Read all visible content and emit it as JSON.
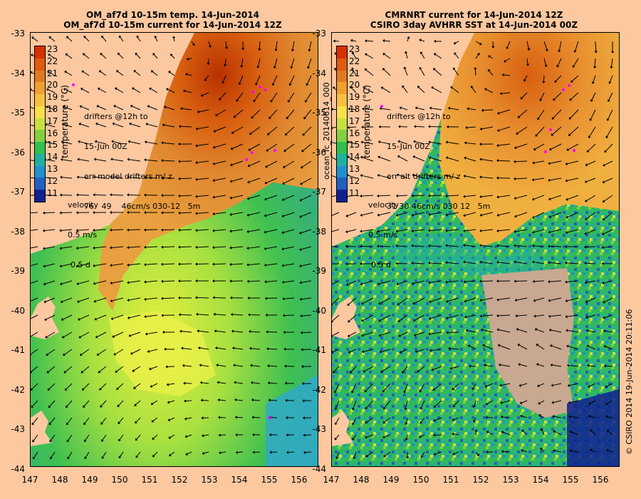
{
  "left_panel": {
    "title_line1": "OM_af7d 10-15m temp. 14-Jun-2014",
    "title_line2": "OM_af7d 10-15m current for 14-Jun-2014 12Z",
    "colorbar_label": "temperature (°C)",
    "drifters_line1": "drifters @12h to",
    "drifters_line2": "15-Jun 00Z",
    "err_line": "err model drifters m/ z",
    "stats_line": "76   49    46cm/s 030-12   5m",
    "velocity_label": "velocity",
    "scale_speed": "0.5 m/s",
    "scale_days": "0.5 d"
  },
  "right_panel": {
    "title_line1": "CMRNRT current for 14-Jun-2014 12Z",
    "title_line2": "CSIRO 3day AVHRR SST at 14-Jun-2014 00Z",
    "colorbar_label": "temperature (°C)",
    "drifters_line1": "drifters @12h to",
    "drifters_line2": "15-Jun 00Z",
    "err_line": "err alt drifters m/ z",
    "stats_line": "31 30 46cm/s 030 12   5m",
    "velocity_label": "velocity",
    "scale_speed": "0.5 m/s",
    "scale_days": "0.5 d"
  },
  "side_label_left": "ocean_fc_20140614_000",
  "side_label_right": "© CSIRO 2014   19-Jun-2014 20:11:06",
  "lat_ticks": [
    "-33",
    "-34",
    "-35",
    "-36",
    "-37",
    "-38",
    "-39",
    "-40",
    "-41",
    "-42",
    "-43",
    "-44"
  ],
  "lon_ticks": [
    "147",
    "148",
    "149",
    "150",
    "151",
    "152",
    "153",
    "154",
    "155",
    "156"
  ],
  "colorbar_ticks": [
    "23",
    "22",
    "21",
    "20",
    "19",
    "18",
    "17",
    "16",
    "15",
    "14",
    "13",
    "12",
    "11"
  ],
  "colors": {
    "land": "#fcc8a0",
    "cloud": "#c8a890",
    "arrow": "#000000",
    "drifter": "#ff00ff",
    "scale": [
      "#d73000",
      "#e05a10",
      "#e07a20",
      "#f0a030",
      "#f8c040",
      "#f8e048",
      "#c8e040",
      "#80d040",
      "#30c050",
      "#20b0a0",
      "#2090d0",
      "#2060c0",
      "#102090"
    ]
  }
}
